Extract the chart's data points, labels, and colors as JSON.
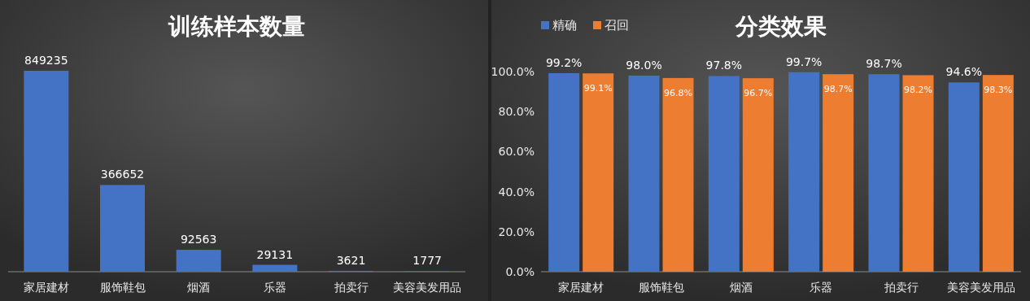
{
  "chart_data": [
    {
      "type": "bar",
      "title": "训练样本数量",
      "categories": [
        "家居建材",
        "服饰鞋包",
        "烟酒",
        "乐器",
        "拍卖行",
        "美容美发用品"
      ],
      "values": [
        849235,
        366652,
        92563,
        29131,
        3621,
        1777
      ],
      "color": "#4472c4",
      "data_labels": true
    },
    {
      "type": "bar",
      "title": "分类效果",
      "categories": [
        "家居建材",
        "服饰鞋包",
        "烟酒",
        "乐器",
        "拍卖行",
        "美容美发用品"
      ],
      "series": [
        {
          "name": "精确",
          "color": "#4472c4",
          "values": [
            99.2,
            98.0,
            97.8,
            99.7,
            98.7,
            94.6
          ],
          "value_labels": [
            "99.2%",
            "98.0%",
            "97.8%",
            "99.7%",
            "98.7%",
            "94.6%"
          ]
        },
        {
          "name": "召回",
          "color": "#ed7d31",
          "values": [
            99.1,
            96.8,
            96.7,
            98.7,
            98.2,
            98.3
          ],
          "value_labels": [
            "99.1%",
            "96.8%",
            "96.7%",
            "98.7%",
            "98.2%",
            "98.3%"
          ]
        }
      ],
      "ylim": [
        0,
        100
      ],
      "yticks": [
        {
          "value": 0,
          "label": "0.0%"
        },
        {
          "value": 20,
          "label": "20.0%"
        },
        {
          "value": 40,
          "label": "40.0%"
        },
        {
          "value": 60,
          "label": "60.0%"
        },
        {
          "value": 80,
          "label": "80.0%"
        },
        {
          "value": 100,
          "label": "100.0%"
        }
      ],
      "legend": "top left",
      "grid": false
    }
  ]
}
